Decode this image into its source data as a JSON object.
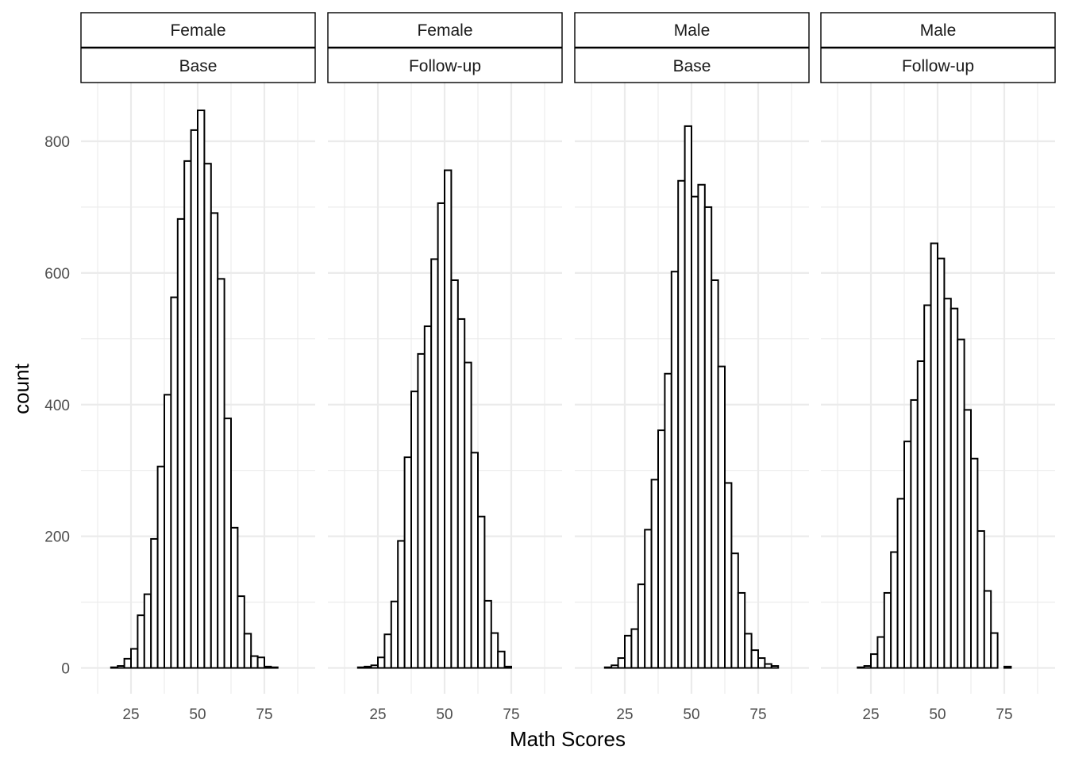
{
  "chart_data": {
    "type": "bar",
    "subtype": "faceted-histogram",
    "xlabel": "Math Scores",
    "ylabel": "count",
    "ylim": [
      0,
      850
    ],
    "yticks": [
      0,
      200,
      400,
      600,
      800
    ],
    "xlim": [
      10,
      92
    ],
    "xticks": [
      25,
      50,
      75
    ],
    "bin_width": 2.5,
    "bin_start": 12.5,
    "grid": true,
    "bar_fill": "#ffffff",
    "bar_outline": "#000000",
    "panels": [
      {
        "strip_top": "Female",
        "strip_bottom": "Base",
        "values": [
          0,
          0,
          1,
          3,
          14,
          29,
          80,
          112,
          196,
          306,
          415,
          563,
          682,
          770,
          817,
          847,
          766,
          691,
          591,
          379,
          213,
          109,
          52,
          18,
          16,
          2,
          1,
          0,
          0,
          0,
          0
        ]
      },
      {
        "strip_top": "Female",
        "strip_bottom": "Follow-up",
        "values": [
          0,
          0,
          1,
          2,
          4,
          16,
          51,
          101,
          193,
          320,
          420,
          477,
          519,
          621,
          706,
          756,
          589,
          530,
          464,
          327,
          230,
          102,
          53,
          25,
          2,
          0,
          0,
          0,
          0,
          0,
          0
        ]
      },
      {
        "strip_top": "Male",
        "strip_bottom": "Base",
        "values": [
          0,
          0,
          1,
          4,
          15,
          49,
          59,
          127,
          210,
          286,
          361,
          447,
          602,
          740,
          823,
          716,
          734,
          700,
          589,
          458,
          281,
          174,
          114,
          52,
          27,
          15,
          6,
          3,
          0,
          0,
          0
        ]
      },
      {
        "strip_top": "Male",
        "strip_bottom": "Follow-up",
        "values": [
          0,
          0,
          0,
          1,
          3,
          21,
          47,
          114,
          176,
          257,
          344,
          407,
          466,
          551,
          645,
          622,
          561,
          546,
          499,
          392,
          318,
          208,
          117,
          53,
          0,
          2,
          0,
          0,
          0,
          0,
          0
        ]
      }
    ]
  }
}
